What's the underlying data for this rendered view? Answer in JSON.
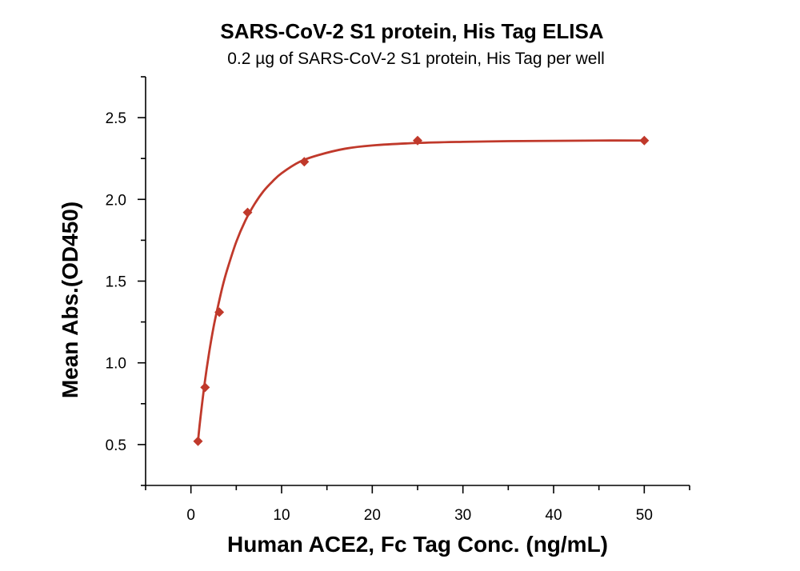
{
  "chart_data": {
    "type": "scatter",
    "title": "SARS-CoV-2 S1 protein, His Tag ELISA",
    "subtitle": "0.2 µg of SARS-CoV-2 S1 protein, His Tag per well",
    "xlabel": "Human ACE2, Fc Tag Conc. (ng/mL)",
    "ylabel": "Mean Abs.(OD450)",
    "xlim": [
      -5,
      55
    ],
    "ylim": [
      0.25,
      2.75
    ],
    "xticks": [
      0,
      10,
      20,
      30,
      40,
      50
    ],
    "xtick_labels": [
      "0",
      "10",
      "20",
      "30",
      "40",
      "50"
    ],
    "yticks": [
      0.5,
      1.0,
      1.5,
      2.0,
      2.5
    ],
    "ytick_labels": [
      "0.5",
      "1.0",
      "1.5",
      "2.0",
      "2.5"
    ],
    "grid": false,
    "series": [
      {
        "marker": "diamond",
        "color": "#c0392b",
        "x": [
          0.78,
          1.56,
          3.13,
          6.25,
          12.5,
          25,
          50
        ],
        "y": [
          0.52,
          0.85,
          1.31,
          1.92,
          2.23,
          2.36,
          2.36
        ]
      }
    ],
    "fit_curve": {
      "color": "#c0392b",
      "x": [
        0.78,
        1.0,
        1.5,
        2.0,
        2.5,
        3.0,
        3.5,
        4.0,
        5.0,
        6.0,
        7.0,
        8.0,
        9.0,
        10.0,
        12.0,
        14.0,
        17.0,
        20.0,
        25.0,
        30.0,
        35.0,
        40.0,
        45.0,
        50.0
      ],
      "y": [
        0.52,
        0.64,
        0.87,
        1.06,
        1.22,
        1.35,
        1.47,
        1.57,
        1.74,
        1.87,
        1.97,
        2.05,
        2.11,
        2.16,
        2.23,
        2.27,
        2.31,
        2.33,
        2.345,
        2.352,
        2.356,
        2.358,
        2.36,
        2.36
      ]
    }
  }
}
